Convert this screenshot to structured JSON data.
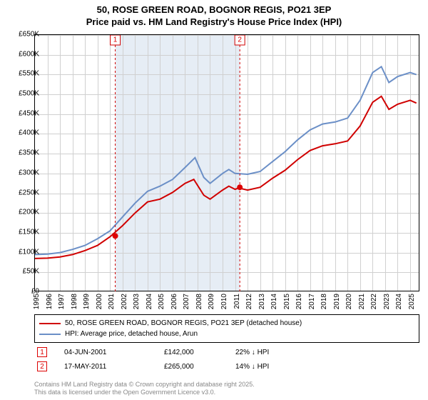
{
  "title_line1": "50, ROSE GREEN ROAD, BOGNOR REGIS, PO21 3EP",
  "title_line2": "Price paid vs. HM Land Registry's House Price Index (HPI)",
  "chart": {
    "type": "line",
    "background_color": "#ffffff",
    "grid_color": "#d0d0d0",
    "axis_color": "#000000",
    "shade_color": "#e6edf5",
    "x_start": 1995,
    "x_end": 2025.8,
    "ylim": [
      0,
      650000
    ],
    "ytick_step": 50000,
    "yticks": [
      "£0",
      "£50K",
      "£100K",
      "£150K",
      "£200K",
      "£250K",
      "£300K",
      "£350K",
      "£400K",
      "£450K",
      "£500K",
      "£550K",
      "£600K",
      "£650K"
    ],
    "xticks": [
      "1995",
      "1996",
      "1997",
      "1998",
      "1999",
      "2000",
      "2001",
      "2002",
      "2003",
      "2004",
      "2005",
      "2006",
      "2007",
      "2008",
      "2009",
      "2010",
      "2011",
      "2012",
      "2013",
      "2014",
      "2015",
      "2016",
      "2017",
      "2018",
      "2019",
      "2020",
      "2021",
      "2022",
      "2023",
      "2024",
      "2025"
    ],
    "shade_start": 2001.42,
    "shade_end": 2011.38,
    "series": [
      {
        "name": "hpi",
        "color": "#6b8fc7",
        "width": 2,
        "points": [
          [
            1995,
            95000
          ],
          [
            1996,
            96000
          ],
          [
            1997,
            100000
          ],
          [
            1998,
            108000
          ],
          [
            1999,
            118000
          ],
          [
            2000,
            135000
          ],
          [
            2001,
            155000
          ],
          [
            2002,
            190000
          ],
          [
            2003,
            225000
          ],
          [
            2004,
            255000
          ],
          [
            2005,
            268000
          ],
          [
            2006,
            285000
          ],
          [
            2007,
            315000
          ],
          [
            2007.8,
            340000
          ],
          [
            2008.5,
            290000
          ],
          [
            2009,
            275000
          ],
          [
            2010,
            300000
          ],
          [
            2010.5,
            310000
          ],
          [
            2011,
            300000
          ],
          [
            2012,
            298000
          ],
          [
            2013,
            305000
          ],
          [
            2014,
            330000
          ],
          [
            2015,
            355000
          ],
          [
            2016,
            385000
          ],
          [
            2017,
            410000
          ],
          [
            2018,
            425000
          ],
          [
            2019,
            430000
          ],
          [
            2020,
            440000
          ],
          [
            2021,
            485000
          ],
          [
            2022,
            555000
          ],
          [
            2022.7,
            570000
          ],
          [
            2023.3,
            530000
          ],
          [
            2024,
            545000
          ],
          [
            2025,
            555000
          ],
          [
            2025.5,
            550000
          ]
        ]
      },
      {
        "name": "price",
        "color": "#d00000",
        "width": 2,
        "points": [
          [
            1995,
            85000
          ],
          [
            1996,
            86000
          ],
          [
            1997,
            89000
          ],
          [
            1998,
            95000
          ],
          [
            1999,
            105000
          ],
          [
            2000,
            118000
          ],
          [
            2001,
            140000
          ],
          [
            2002,
            168000
          ],
          [
            2003,
            200000
          ],
          [
            2004,
            228000
          ],
          [
            2005,
            235000
          ],
          [
            2006,
            252000
          ],
          [
            2007,
            275000
          ],
          [
            2007.7,
            285000
          ],
          [
            2008.5,
            245000
          ],
          [
            2009,
            235000
          ],
          [
            2010,
            258000
          ],
          [
            2010.5,
            268000
          ],
          [
            2011,
            260000
          ],
          [
            2011.3,
            263000
          ],
          [
            2012,
            258000
          ],
          [
            2013,
            265000
          ],
          [
            2014,
            288000
          ],
          [
            2015,
            308000
          ],
          [
            2016,
            335000
          ],
          [
            2017,
            358000
          ],
          [
            2018,
            370000
          ],
          [
            2019,
            375000
          ],
          [
            2020,
            382000
          ],
          [
            2021,
            420000
          ],
          [
            2022,
            480000
          ],
          [
            2022.7,
            495000
          ],
          [
            2023.3,
            462000
          ],
          [
            2024,
            475000
          ],
          [
            2025,
            485000
          ],
          [
            2025.5,
            478000
          ]
        ]
      }
    ],
    "markers": [
      {
        "num": "1",
        "x": 2001.42,
        "point_y": 142000,
        "color": "#d00000"
      },
      {
        "num": "2",
        "x": 2011.38,
        "point_y": 265000,
        "color": "#d00000"
      }
    ]
  },
  "legend": {
    "items": [
      {
        "color": "#d00000",
        "label": "50, ROSE GREEN ROAD, BOGNOR REGIS, PO21 3EP (detached house)"
      },
      {
        "color": "#6b8fc7",
        "label": "HPI: Average price, detached house, Arun"
      }
    ]
  },
  "sales": [
    {
      "num": "1",
      "date": "04-JUN-2001",
      "price": "£142,000",
      "diff": "22% ↓ HPI"
    },
    {
      "num": "2",
      "date": "17-MAY-2011",
      "price": "£265,000",
      "diff": "14% ↓ HPI"
    }
  ],
  "footnote_line1": "Contains HM Land Registry data © Crown copyright and database right 2025.",
  "footnote_line2": "This data is licensed under the Open Government Licence v3.0."
}
